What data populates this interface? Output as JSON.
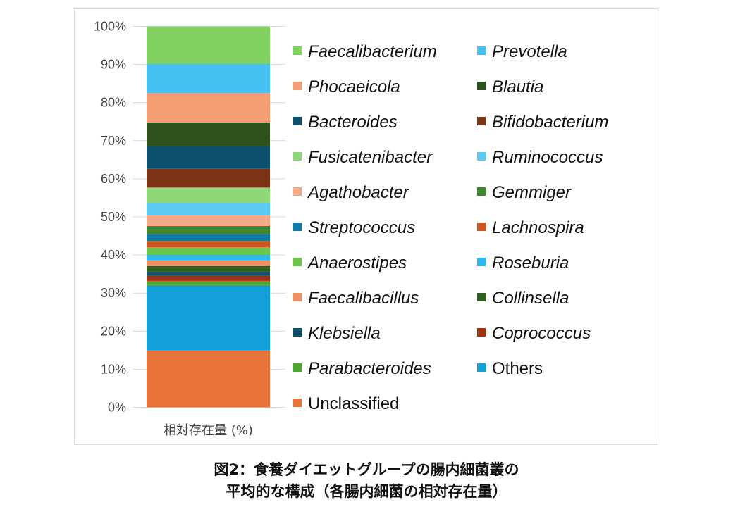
{
  "caption": {
    "line1": "図2：食養ダイエットグループの腸内細菌叢の",
    "line2": "平均的な構成（各腸内細菌の相対存在量）"
  },
  "chart_data": {
    "type": "bar",
    "stacked": true,
    "percent": true,
    "categories": [
      "相対存在量 (%)"
    ],
    "ylim": [
      0,
      100
    ],
    "yticks": [
      "0%",
      "10%",
      "20%",
      "30%",
      "40%",
      "50%",
      "60%",
      "70%",
      "80%",
      "90%",
      "100%"
    ],
    "grid": true,
    "legend_position": "right",
    "series": [
      {
        "name": "Unclassified",
        "values": [
          15.0
        ],
        "color": "#e8743b",
        "italic": false
      },
      {
        "name": "Others",
        "values": [
          17.1
        ],
        "color": "#14a0da",
        "italic": false
      },
      {
        "name": "Parabacteroides",
        "values": [
          1.1
        ],
        "color": "#4ea72e",
        "italic": true
      },
      {
        "name": "Coprococcus",
        "values": [
          1.3
        ],
        "color": "#a0330f",
        "italic": true
      },
      {
        "name": "Klebsiella",
        "values": [
          1.2
        ],
        "color": "#0e4f70",
        "italic": true
      },
      {
        "name": "Collinsella",
        "values": [
          1.4
        ],
        "color": "#2f5e1e",
        "italic": true
      },
      {
        "name": "Faecalibacillus",
        "values": [
          1.5
        ],
        "color": "#f08f62",
        "italic": true
      },
      {
        "name": "Roseburia",
        "values": [
          1.6
        ],
        "color": "#2fb8ef",
        "italic": true
      },
      {
        "name": "Anaerostipes",
        "values": [
          1.8
        ],
        "color": "#6cc44a",
        "italic": true
      },
      {
        "name": "Lachnospira",
        "values": [
          1.7
        ],
        "color": "#cf5620",
        "italic": true
      },
      {
        "name": "Streptococcus",
        "values": [
          1.8
        ],
        "color": "#107ca8",
        "italic": true
      },
      {
        "name": "Gemmiger",
        "values": [
          2.1
        ],
        "color": "#3f862f",
        "italic": true
      },
      {
        "name": "Agathobacter",
        "values": [
          2.8
        ],
        "color": "#f4aa88",
        "italic": true
      },
      {
        "name": "Ruminococcus",
        "values": [
          3.4
        ],
        "color": "#5ccaf5",
        "italic": true
      },
      {
        "name": "Fusicatenibacter",
        "values": [
          3.9
        ],
        "color": "#8ed879",
        "italic": true
      },
      {
        "name": "Bifidobacterium",
        "values": [
          5.0
        ],
        "color": "#7e3316",
        "italic": true
      },
      {
        "name": "Bacteroides",
        "values": [
          5.8
        ],
        "color": "#0d4f6d",
        "italic": true
      },
      {
        "name": "Blautia",
        "values": [
          6.3
        ],
        "color": "#2e521c",
        "italic": true
      },
      {
        "name": "Phocaeicola",
        "values": [
          7.7
        ],
        "color": "#f29e72",
        "italic": true
      },
      {
        "name": "Prevotella",
        "values": [
          7.7
        ],
        "color": "#47c1f1",
        "italic": true
      },
      {
        "name": "Faecalibacterium",
        "values": [
          9.8
        ],
        "color": "#80d160",
        "italic": true
      }
    ],
    "legend_order": [
      "Faecalibacterium",
      "Prevotella",
      "Phocaeicola",
      "Blautia",
      "Bacteroides",
      "Bifidobacterium",
      "Fusicatenibacter",
      "Ruminococcus",
      "Agathobacter",
      "Gemmiger",
      "Streptococcus",
      "Lachnospira",
      "Anaerostipes",
      "Roseburia",
      "Faecalibacillus",
      "Collinsella",
      "Klebsiella",
      "Coprococcus",
      "Parabacteroides",
      "Others",
      "Unclassified"
    ]
  }
}
